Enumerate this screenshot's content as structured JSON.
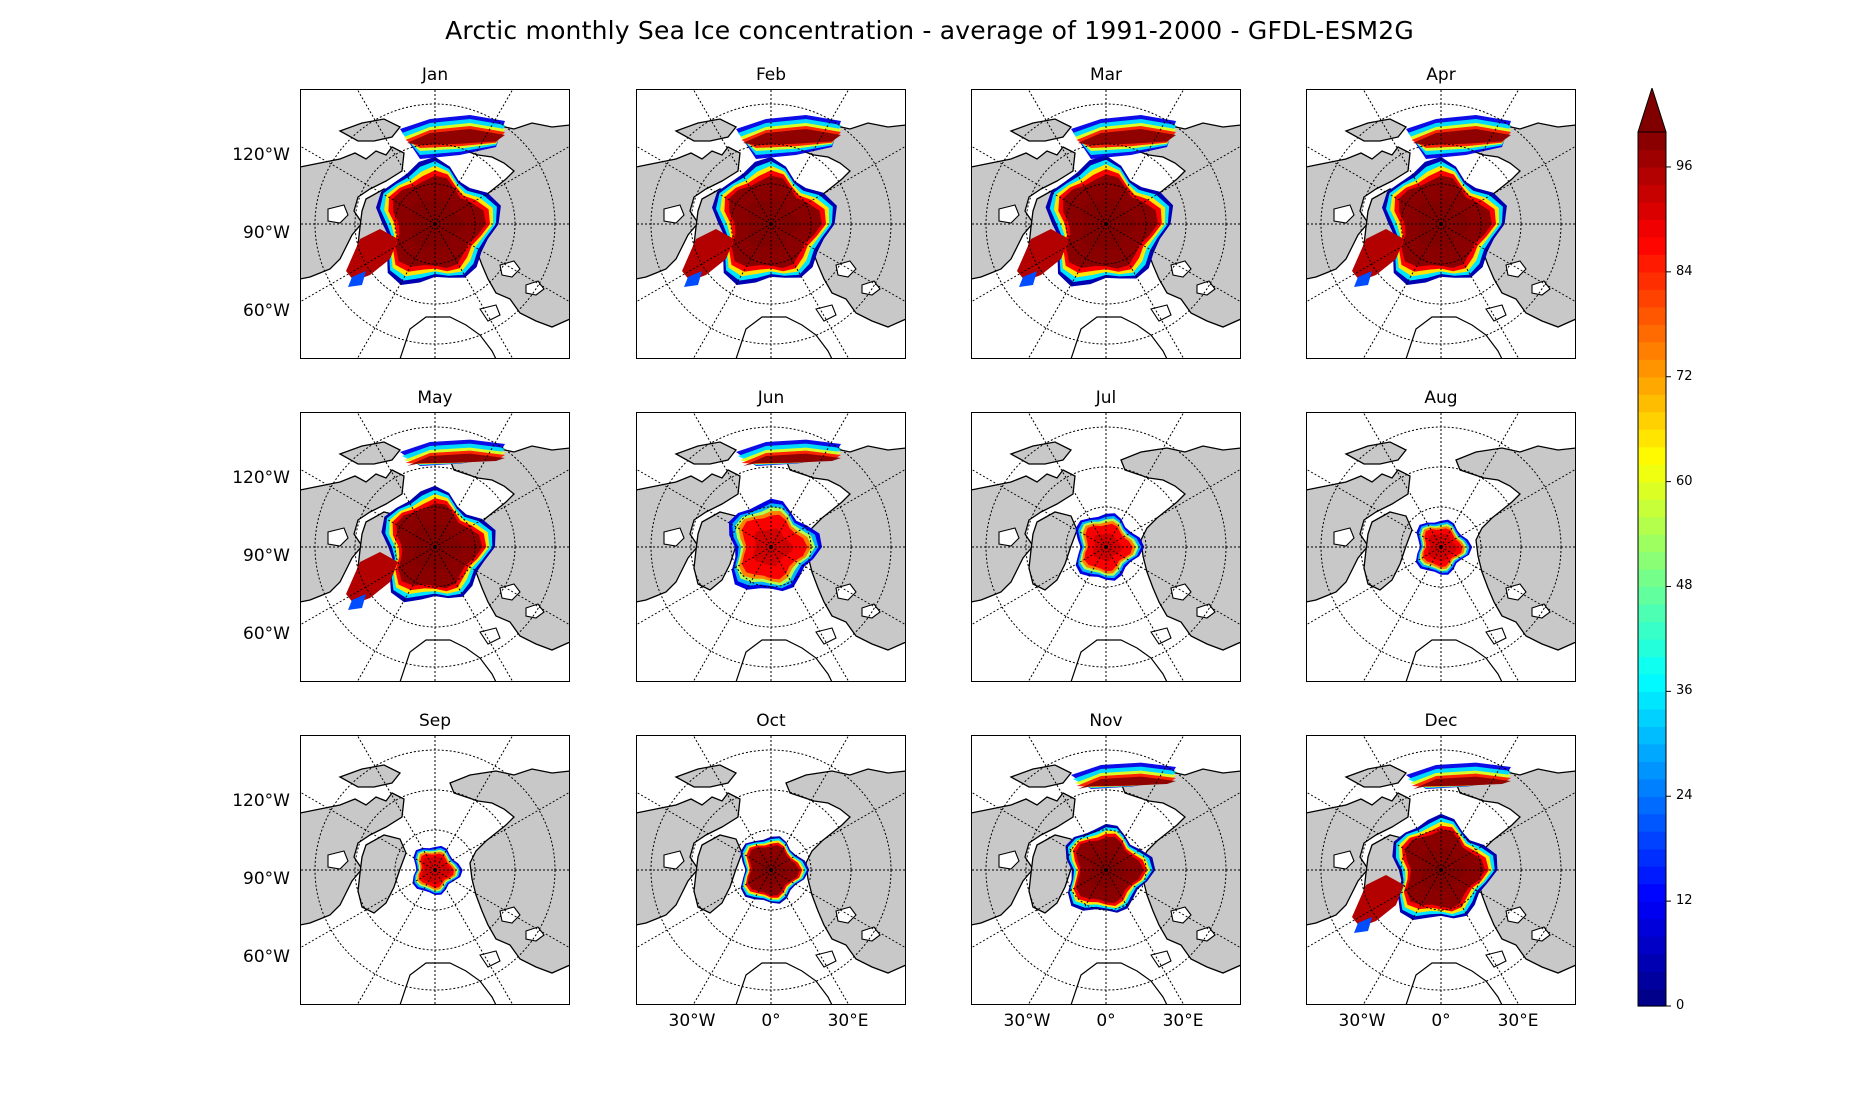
{
  "figure": {
    "title": "Arctic monthly Sea Ice concentration - average of 1991-2000 - GFDL-ESM2G",
    "land_color": "#c8c8c8",
    "ocean_color": "#ffffff",
    "grid_style": "dotted"
  },
  "panels": [
    {
      "month": "Jan",
      "extent": 1.0,
      "pacific_ice": "high",
      "summer": false
    },
    {
      "month": "Feb",
      "extent": 1.0,
      "pacific_ice": "high",
      "summer": false
    },
    {
      "month": "Mar",
      "extent": 1.02,
      "pacific_ice": "high",
      "summer": false
    },
    {
      "month": "Apr",
      "extent": 1.0,
      "pacific_ice": "high",
      "summer": false
    },
    {
      "month": "May",
      "extent": 0.92,
      "pacific_ice": "low",
      "summer": false
    },
    {
      "month": "Jun",
      "extent": 0.75,
      "pacific_ice": "low",
      "summer": true
    },
    {
      "month": "Jul",
      "extent": 0.55,
      "pacific_ice": "none",
      "summer": true
    },
    {
      "month": "Aug",
      "extent": 0.45,
      "pacific_ice": "none",
      "summer": true
    },
    {
      "month": "Sep",
      "extent": 0.4,
      "pacific_ice": "none",
      "summer": true
    },
    {
      "month": "Oct",
      "extent": 0.55,
      "pacific_ice": "none",
      "summer": false
    },
    {
      "month": "Nov",
      "extent": 0.72,
      "pacific_ice": "low",
      "summer": false
    },
    {
      "month": "Dec",
      "extent": 0.85,
      "pacific_ice": "low",
      "summer": false
    }
  ],
  "lat_labels": [
    "120°W",
    "90°W",
    "60°W"
  ],
  "lon_labels": [
    "30°W",
    "0°",
    "30°E"
  ],
  "colorbar": {
    "colormap": "jet",
    "extend": "max",
    "min": 0,
    "max": 100,
    "ticks": [
      "0",
      "12",
      "24",
      "36",
      "48",
      "60",
      "72",
      "84",
      "96"
    ],
    "tick_values": [
      0,
      12,
      24,
      36,
      48,
      60,
      72,
      84,
      96
    ]
  }
}
